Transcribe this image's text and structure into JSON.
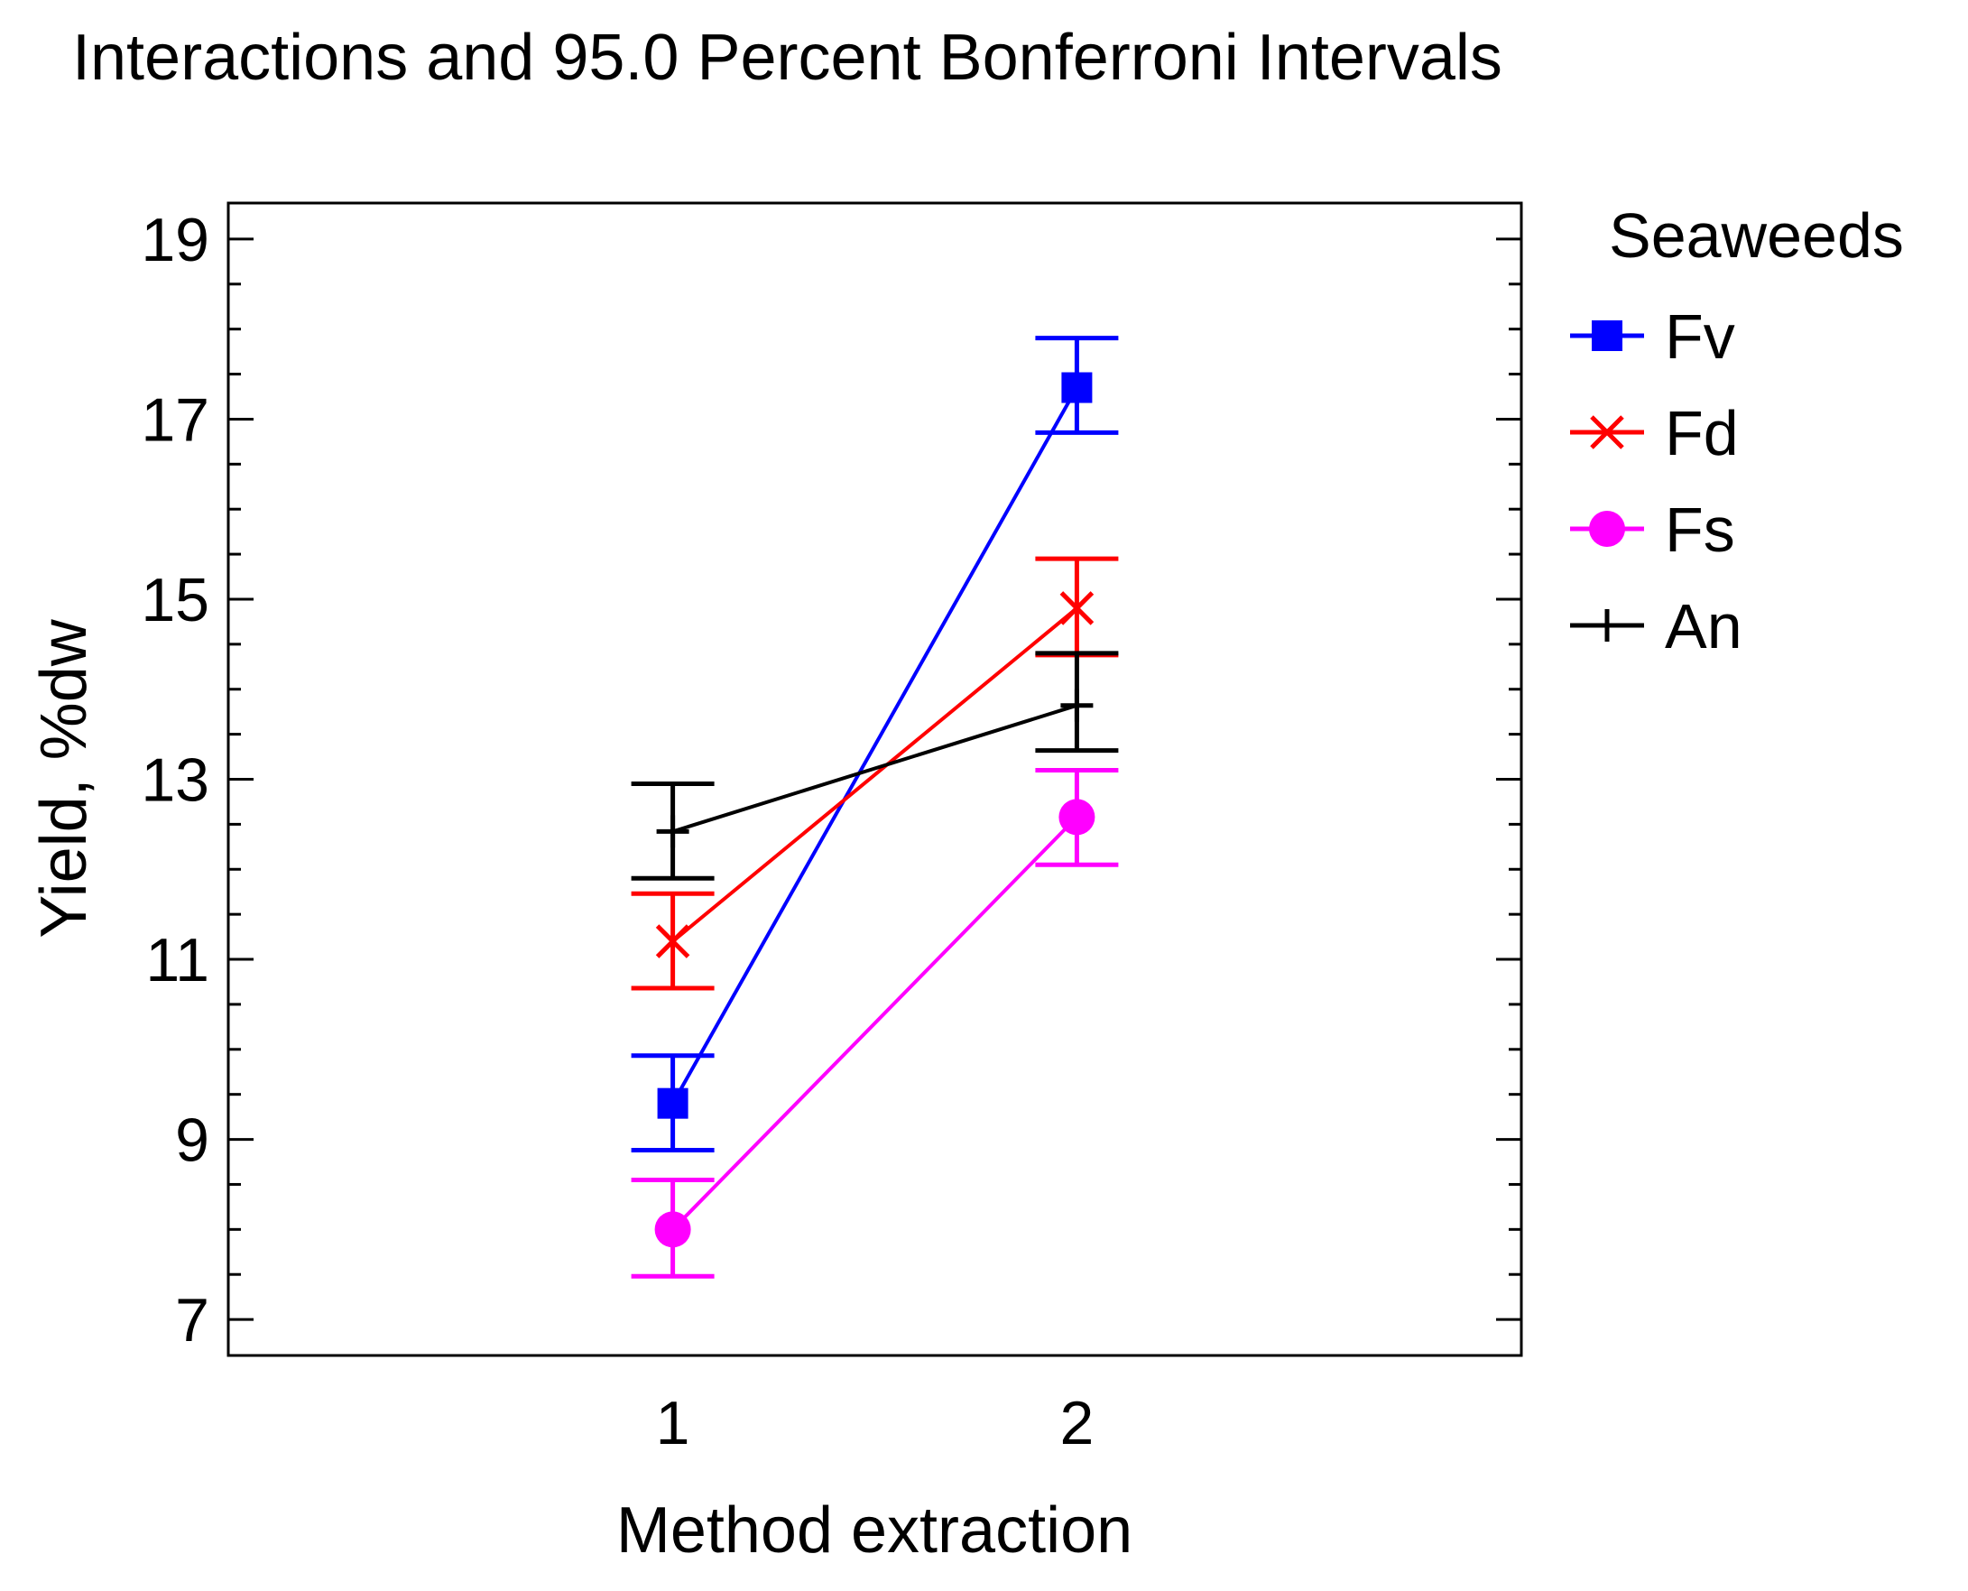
{
  "chart_data": {
    "type": "line",
    "title": "Interactions and 95.0 Percent Bonferroni Intervals",
    "xlabel": "Method extraction",
    "ylabel": "Yield, %dw",
    "categories": [
      "1",
      "2"
    ],
    "x": [
      1,
      2
    ],
    "xlim": [
      -0.1,
      3.1
    ],
    "ylim": [
      6.6,
      19.4
    ],
    "yticks": [
      7,
      9,
      11,
      13,
      15,
      17,
      19
    ],
    "grid": false,
    "legend": {
      "title": "Seaweeds",
      "position": "right"
    },
    "series": [
      {
        "name": "Fv",
        "color": "#0000ff",
        "marker": "square",
        "values": [
          9.4,
          17.35
        ],
        "lower": [
          8.88,
          16.85
        ],
        "upper": [
          9.93,
          17.9
        ]
      },
      {
        "name": "Fd",
        "color": "#ff0000",
        "marker": "x",
        "values": [
          11.2,
          14.9
        ],
        "lower": [
          10.68,
          14.38
        ],
        "upper": [
          11.73,
          15.45
        ]
      },
      {
        "name": "Fs",
        "color": "#ff00ff",
        "marker": "circle",
        "values": [
          8.0,
          12.58
        ],
        "lower": [
          7.48,
          12.05
        ],
        "upper": [
          8.55,
          13.1
        ]
      },
      {
        "name": "An",
        "color": "#000000",
        "marker": "plus",
        "values": [
          12.42,
          13.82
        ],
        "lower": [
          11.9,
          13.32
        ],
        "upper": [
          12.95,
          14.4
        ]
      }
    ]
  }
}
